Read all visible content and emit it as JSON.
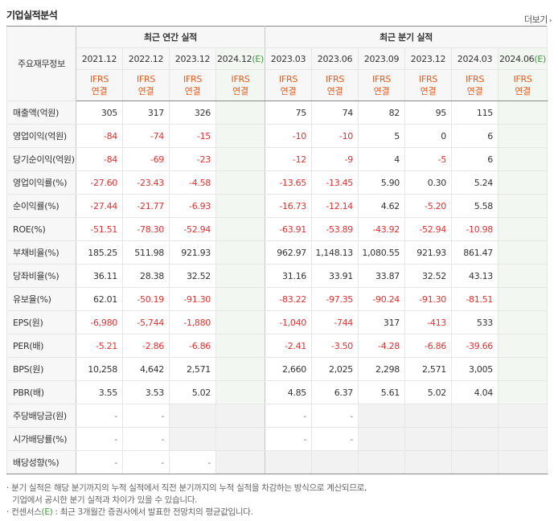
{
  "header": {
    "title": "기업실적분석",
    "more_label": "더보기",
    "more_icon": "chevron-right-icon"
  },
  "table": {
    "corner_label": "주요재무정보",
    "group_annual": "최근 연간 실적",
    "group_quarter": "최근 분기 실적",
    "estimate_mark": "(E)",
    "periods": [
      {
        "label": "2021.12",
        "est": false
      },
      {
        "label": "2022.12",
        "est": false
      },
      {
        "label": "2023.12",
        "est": false
      },
      {
        "label": "2024.12",
        "est": true
      },
      {
        "label": "2023.03",
        "est": false
      },
      {
        "label": "2023.06",
        "est": false
      },
      {
        "label": "2023.09",
        "est": false
      },
      {
        "label": "2023.12",
        "est": false
      },
      {
        "label": "2024.03",
        "est": false
      },
      {
        "label": "2024.06",
        "est": true
      }
    ],
    "standard": {
      "line1": "IFRS",
      "line2": "연결"
    },
    "rows": [
      {
        "label": "매출액(억원)",
        "values": [
          "305",
          "317",
          "326",
          "",
          "75",
          "74",
          "82",
          "95",
          "115",
          ""
        ]
      },
      {
        "label": "영업이익(억원)",
        "values": [
          "-84",
          "-74",
          "-15",
          "",
          "-10",
          "-10",
          "5",
          "0",
          "6",
          ""
        ]
      },
      {
        "label": "당기순이익(억원)",
        "values": [
          "-84",
          "-69",
          "-23",
          "",
          "-12",
          "-9",
          "4",
          "-5",
          "6",
          ""
        ]
      },
      {
        "label": "영업이익률(%)",
        "values": [
          "-27.60",
          "-23.43",
          "-4.58",
          "",
          "-13.65",
          "-13.45",
          "5.90",
          "0.30",
          "5.24",
          ""
        ]
      },
      {
        "label": "순이익률(%)",
        "values": [
          "-27.44",
          "-21.77",
          "-6.93",
          "",
          "-16.73",
          "-12.14",
          "4.62",
          "-5.20",
          "5.58",
          ""
        ]
      },
      {
        "label": "ROE(%)",
        "values": [
          "-51.51",
          "-78.30",
          "-52.94",
          "",
          "-63.91",
          "-53.89",
          "-43.92",
          "-52.94",
          "-10.98",
          ""
        ]
      },
      {
        "label": "부채비율(%)",
        "values": [
          "185.25",
          "511.98",
          "921.93",
          "",
          "962.97",
          "1,148.13",
          "1,080.55",
          "921.93",
          "861.47",
          ""
        ]
      },
      {
        "label": "당좌비율(%)",
        "values": [
          "36.11",
          "28.38",
          "32.52",
          "",
          "31.16",
          "33.91",
          "33.87",
          "32.52",
          "43.13",
          ""
        ]
      },
      {
        "label": "유보율(%)",
        "values": [
          "62.01",
          "-50.19",
          "-91.30",
          "",
          "-83.22",
          "-97.35",
          "-90.24",
          "-91.30",
          "-81.51",
          ""
        ]
      },
      {
        "label": "EPS(원)",
        "values": [
          "-6,980",
          "-5,744",
          "-1,880",
          "",
          "-1,040",
          "-744",
          "317",
          "-413",
          "533",
          ""
        ]
      },
      {
        "label": "PER(배)",
        "values": [
          "-5.21",
          "-2.86",
          "-6.86",
          "",
          "-2.41",
          "-3.50",
          "-4.28",
          "-6.86",
          "-39.66",
          ""
        ]
      },
      {
        "label": "BPS(원)",
        "values": [
          "10,258",
          "4,642",
          "2,571",
          "",
          "2,660",
          "2,025",
          "2,298",
          "2,571",
          "3,005",
          ""
        ]
      },
      {
        "label": "PBR(배)",
        "values": [
          "3.55",
          "3.53",
          "5.02",
          "",
          "4.85",
          "6.37",
          "5.61",
          "5.02",
          "4.04",
          ""
        ]
      },
      {
        "label": "주당배당금(원)",
        "values": [
          "-",
          "-",
          null,
          null,
          "-",
          "-",
          null,
          null,
          null,
          null
        ]
      },
      {
        "label": "시가배당률(%)",
        "values": [
          "-",
          "-",
          null,
          null,
          "-",
          "-",
          null,
          null,
          null,
          null
        ]
      },
      {
        "label": "배당성향(%)",
        "values": [
          "-",
          "-",
          "-",
          null,
          null,
          null,
          null,
          null,
          null,
          null
        ]
      }
    ]
  },
  "notes": {
    "line1": "분기 실적은 해당 분기까지의 누적 실적에서 직전 분기까지의 누적 실적을 차감하는 방식으로 계산되므로,",
    "line2": "기업에서 공시한 분기 실적과 차이가 있을 수 있습니다.",
    "line3_pre": "컨센서스",
    "line3_post": ": 최근 3개월간 증권사에서 발표한 전망치의 평균값입니다."
  }
}
